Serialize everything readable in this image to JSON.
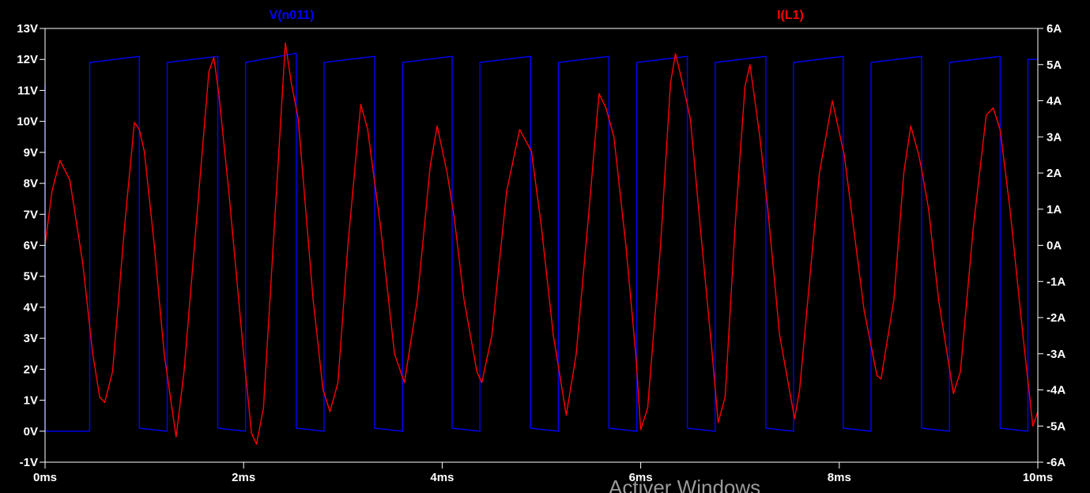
{
  "chart_data": {
    "type": "line",
    "background": "#000000",
    "axis_color": "#ffffff",
    "grid": false,
    "x": {
      "range_ms": [
        0,
        10
      ],
      "tick_labels": [
        "0ms",
        "2ms",
        "4ms",
        "6ms",
        "8ms",
        "10ms"
      ],
      "tick_values_ms": [
        0,
        2,
        4,
        6,
        8,
        10
      ]
    },
    "y_left": {
      "range_V": [
        -1,
        13
      ],
      "tick_labels": [
        "13V",
        "12V",
        "11V",
        "10V",
        "9V",
        "8V",
        "7V",
        "6V",
        "5V",
        "4V",
        "3V",
        "2V",
        "1V",
        "0V",
        "-1V"
      ],
      "tick_values_V": [
        13,
        12,
        11,
        10,
        9,
        8,
        7,
        6,
        5,
        4,
        3,
        2,
        1,
        0,
        -1
      ]
    },
    "y_right": {
      "range_A": [
        -6,
        6
      ],
      "tick_labels": [
        "6A",
        "5A",
        "4A",
        "3A",
        "2A",
        "1A",
        "0A",
        "-1A",
        "-2A",
        "-3A",
        "-4A",
        "-5A",
        "-6A"
      ],
      "tick_values_A": [
        6,
        5,
        4,
        3,
        2,
        1,
        0,
        -1,
        -2,
        -3,
        -4,
        -5,
        -6
      ]
    },
    "series": [
      {
        "name": "V(n011)",
        "axis": "left",
        "color": "#0000ff",
        "low_V": 0.0,
        "high_V": 12.0,
        "rise_times_ms": [
          0.45,
          1.23,
          2.02,
          2.81,
          3.6,
          4.38,
          5.17,
          5.96,
          6.75,
          7.54,
          8.32,
          9.11,
          9.9
        ],
        "fall_times_ms": [
          0.0,
          0.95,
          1.74,
          2.53,
          3.32,
          4.1,
          4.89,
          5.68,
          6.47,
          7.26,
          8.04,
          8.83,
          9.62
        ],
        "points": [
          [
            0.0,
            11.2
          ],
          [
            0.0,
            0.0
          ],
          [
            0.45,
            0.0
          ],
          [
            0.45,
            11.9
          ],
          [
            0.95,
            12.1
          ],
          [
            0.95,
            0.1
          ],
          [
            1.23,
            0.0
          ],
          [
            1.23,
            11.9
          ],
          [
            1.74,
            12.1
          ],
          [
            1.74,
            0.1
          ],
          [
            2.02,
            0.0
          ],
          [
            2.02,
            11.9
          ],
          [
            2.53,
            12.2
          ],
          [
            2.53,
            0.1
          ],
          [
            2.81,
            0.0
          ],
          [
            2.81,
            11.9
          ],
          [
            3.32,
            12.1
          ],
          [
            3.32,
            0.1
          ],
          [
            3.6,
            0.0
          ],
          [
            3.6,
            11.9
          ],
          [
            4.1,
            12.1
          ],
          [
            4.1,
            0.1
          ],
          [
            4.38,
            0.0
          ],
          [
            4.38,
            11.9
          ],
          [
            4.89,
            12.1
          ],
          [
            4.89,
            0.1
          ],
          [
            5.17,
            0.0
          ],
          [
            5.17,
            11.9
          ],
          [
            5.68,
            12.1
          ],
          [
            5.68,
            0.1
          ],
          [
            5.96,
            0.0
          ],
          [
            5.96,
            11.9
          ],
          [
            6.47,
            12.1
          ],
          [
            6.47,
            0.1
          ],
          [
            6.75,
            0.0
          ],
          [
            6.75,
            11.9
          ],
          [
            7.26,
            12.1
          ],
          [
            7.26,
            0.1
          ],
          [
            7.54,
            0.0
          ],
          [
            7.54,
            11.9
          ],
          [
            8.04,
            12.1
          ],
          [
            8.04,
            0.1
          ],
          [
            8.32,
            0.0
          ],
          [
            8.32,
            11.9
          ],
          [
            8.83,
            12.1
          ],
          [
            8.83,
            0.1
          ],
          [
            9.11,
            0.0
          ],
          [
            9.11,
            11.9
          ],
          [
            9.62,
            12.1
          ],
          [
            9.62,
            0.1
          ],
          [
            9.9,
            0.0
          ],
          [
            9.9,
            12.0
          ],
          [
            10.0,
            12.0
          ]
        ]
      },
      {
        "name": "I(L1)",
        "axis": "right",
        "color": "#ff0000",
        "points": [
          [
            0.0,
            0.0
          ],
          [
            0.07,
            1.5
          ],
          [
            0.15,
            2.35
          ],
          [
            0.25,
            1.8
          ],
          [
            0.38,
            -0.5
          ],
          [
            0.48,
            -3.0
          ],
          [
            0.55,
            -4.2
          ],
          [
            0.6,
            -4.35
          ],
          [
            0.68,
            -3.5
          ],
          [
            0.8,
            0.5
          ],
          [
            0.9,
            3.4
          ],
          [
            0.95,
            3.2
          ],
          [
            1.0,
            2.6
          ],
          [
            1.1,
            0.0
          ],
          [
            1.2,
            -3.0
          ],
          [
            1.32,
            -5.3
          ],
          [
            1.4,
            -3.5
          ],
          [
            1.55,
            1.5
          ],
          [
            1.65,
            4.8
          ],
          [
            1.7,
            5.2
          ],
          [
            1.75,
            4.2
          ],
          [
            1.85,
            1.5
          ],
          [
            2.0,
            -3.0
          ],
          [
            2.08,
            -5.2
          ],
          [
            2.13,
            -5.5
          ],
          [
            2.2,
            -4.5
          ],
          [
            2.32,
            1.0
          ],
          [
            2.42,
            5.6
          ],
          [
            2.48,
            4.5
          ],
          [
            2.55,
            3.5
          ],
          [
            2.7,
            -1.5
          ],
          [
            2.8,
            -4.0
          ],
          [
            2.87,
            -4.6
          ],
          [
            2.95,
            -3.8
          ],
          [
            3.05,
            0.0
          ],
          [
            3.18,
            3.9
          ],
          [
            3.25,
            3.2
          ],
          [
            3.38,
            0.5
          ],
          [
            3.52,
            -3.0
          ],
          [
            3.62,
            -3.8
          ],
          [
            3.75,
            -1.5
          ],
          [
            3.88,
            2.2
          ],
          [
            3.95,
            3.3
          ],
          [
            4.05,
            2.0
          ],
          [
            4.12,
            0.8
          ],
          [
            4.22,
            -1.5
          ],
          [
            4.35,
            -3.5
          ],
          [
            4.4,
            -3.8
          ],
          [
            4.5,
            -2.5
          ],
          [
            4.65,
            1.5
          ],
          [
            4.78,
            3.2
          ],
          [
            4.9,
            2.6
          ],
          [
            5.0,
            0.5
          ],
          [
            5.12,
            -2.5
          ],
          [
            5.25,
            -4.7
          ],
          [
            5.35,
            -3.0
          ],
          [
            5.48,
            1.0
          ],
          [
            5.58,
            4.2
          ],
          [
            5.65,
            3.8
          ],
          [
            5.73,
            3.0
          ],
          [
            5.85,
            0.0
          ],
          [
            5.95,
            -3.0
          ],
          [
            6.0,
            -5.1
          ],
          [
            6.07,
            -4.5
          ],
          [
            6.2,
            0.0
          ],
          [
            6.3,
            4.5
          ],
          [
            6.35,
            5.3
          ],
          [
            6.42,
            4.5
          ],
          [
            6.5,
            3.5
          ],
          [
            6.6,
            0.5
          ],
          [
            6.72,
            -3.0
          ],
          [
            6.78,
            -4.9
          ],
          [
            6.85,
            -4.2
          ],
          [
            6.95,
            0.5
          ],
          [
            7.05,
            4.4
          ],
          [
            7.1,
            5.0
          ],
          [
            7.2,
            3.0
          ],
          [
            7.28,
            1.0
          ],
          [
            7.4,
            -2.5
          ],
          [
            7.55,
            -4.8
          ],
          [
            7.6,
            -4.0
          ],
          [
            7.7,
            -1.0
          ],
          [
            7.8,
            2.0
          ],
          [
            7.93,
            4.0
          ],
          [
            8.05,
            2.5
          ],
          [
            8.12,
            1.0
          ],
          [
            8.25,
            -1.8
          ],
          [
            8.38,
            -3.6
          ],
          [
            8.42,
            -3.7
          ],
          [
            8.55,
            -1.5
          ],
          [
            8.65,
            2.0
          ],
          [
            8.72,
            3.3
          ],
          [
            8.8,
            2.5
          ],
          [
            8.83,
            2.1
          ],
          [
            8.9,
            1.0
          ],
          [
            9.0,
            -1.5
          ],
          [
            9.15,
            -4.1
          ],
          [
            9.22,
            -3.5
          ],
          [
            9.35,
            0.5
          ],
          [
            9.48,
            3.6
          ],
          [
            9.55,
            3.8
          ],
          [
            9.62,
            3.2
          ],
          [
            9.72,
            1.0
          ],
          [
            9.85,
            -2.5
          ],
          [
            9.95,
            -5.0
          ],
          [
            10.0,
            -4.6
          ]
        ]
      }
    ]
  },
  "watermark": "Activer Windows"
}
